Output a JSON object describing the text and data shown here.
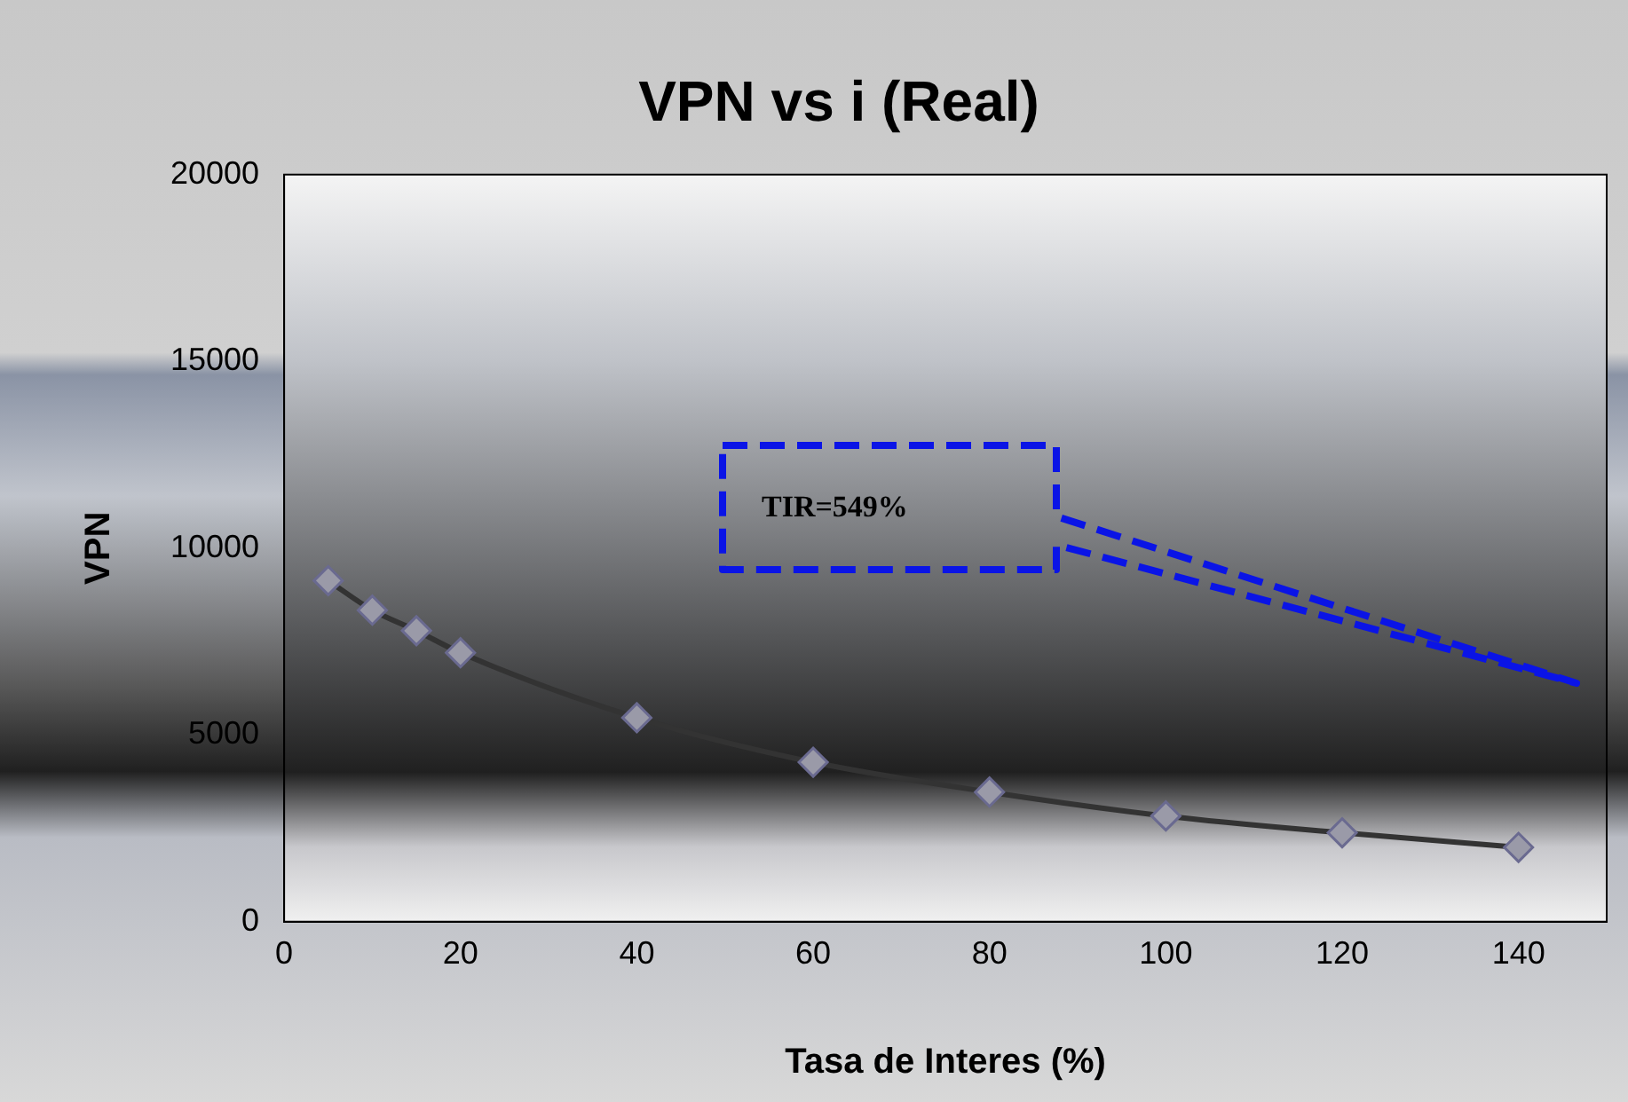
{
  "chart_data": {
    "type": "line",
    "title": "VPN vs i (Real)",
    "xlabel": "Tasa de Interes (%)",
    "ylabel": "VPN",
    "x": [
      5,
      10,
      15,
      20,
      40,
      60,
      80,
      100,
      120,
      140
    ],
    "series": [
      {
        "color": "#333333",
        "values": [
          9130,
          8340,
          7790,
          7200,
          5460,
          4270,
          3470,
          2830,
          2380,
          1990
        ]
      }
    ],
    "xlim": [
      0,
      150
    ],
    "xticks": [
      0,
      20,
      40,
      60,
      80,
      100,
      120,
      140
    ],
    "ylim": [
      0,
      20000
    ],
    "yticks": [
      0,
      5000,
      10000,
      15000,
      20000
    ],
    "marker": "diamond",
    "line_style": "solid",
    "grid": false,
    "legend": false,
    "annotations": [
      "TIR=549%"
    ]
  }
}
